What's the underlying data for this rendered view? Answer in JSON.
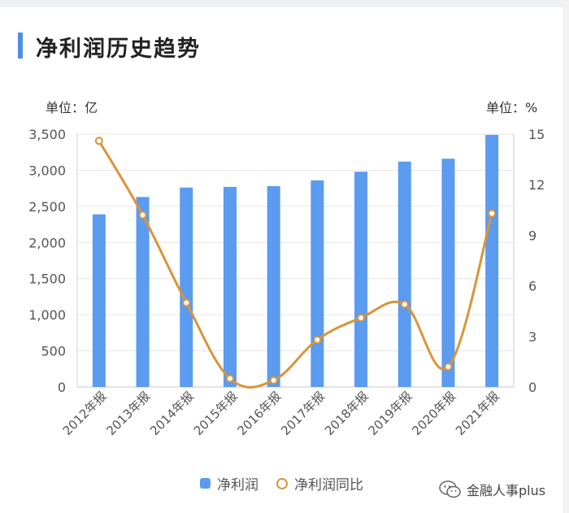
{
  "header": {
    "title": "净利润历史趋势"
  },
  "units": {
    "left": "单位：亿",
    "right": "单位：%"
  },
  "colors": {
    "bar": "#5b9bf0",
    "line": "#d9953a",
    "accent": "#4a8fe8"
  },
  "chart_data": {
    "type": "bar",
    "categories": [
      "2012年报",
      "2013年报",
      "2014年报",
      "2015年报",
      "2016年报",
      "2017年报",
      "2018年报",
      "2019年报",
      "2020年报",
      "2021年报"
    ],
    "series": [
      {
        "name": "净利润",
        "type": "bar",
        "axis": "left",
        "values": [
          2390,
          2630,
          2760,
          2770,
          2780,
          2860,
          2980,
          3120,
          3160,
          3490
        ]
      },
      {
        "name": "净利润同比",
        "type": "line",
        "axis": "right",
        "values": [
          14.6,
          10.2,
          5.0,
          0.5,
          0.4,
          2.8,
          4.1,
          4.9,
          1.2,
          10.3
        ]
      }
    ],
    "left_axis": {
      "ylim": [
        0,
        3500
      ],
      "ticks": [
        "0",
        "500",
        "1,000",
        "1,500",
        "2,000",
        "2,500",
        "3,000",
        "3,500"
      ]
    },
    "right_axis": {
      "ylim": [
        0,
        15
      ],
      "ticks": [
        "0",
        "3",
        "6",
        "9",
        "12",
        "15"
      ]
    },
    "grid": true,
    "legend_position": "bottom-center"
  },
  "watermark": {
    "text": "金融人事plus",
    "icon": "wechat-icon"
  }
}
